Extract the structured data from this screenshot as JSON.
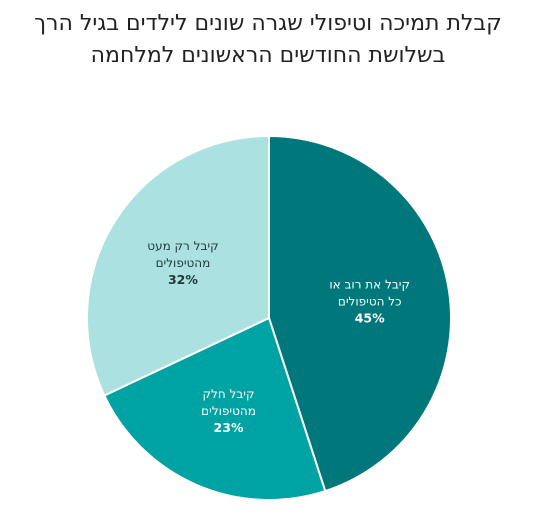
{
  "chart_data": {
    "type": "pie",
    "title_lines": [
      "קבלת תמיכה וטיפולי שגרה שונים לילדים בגיל הרך",
      "בשלושת החודשים הראשונים למלחמה"
    ],
    "slices": [
      {
        "label_lines": [
          "קיבל את רוב או",
          "כל הטיפולים"
        ],
        "value": 45,
        "value_label": "45%",
        "color": "#00777b",
        "text_color": "#ffffff"
      },
      {
        "label_lines": [
          "קיבל חלק",
          "מהטיפולים"
        ],
        "value": 23,
        "value_label": "23%",
        "color": "#00a3a3",
        "text_color": "#ffffff"
      },
      {
        "label_lines": [
          "קיבל רק מעט",
          "מהטיפולים"
        ],
        "value": 32,
        "value_label": "32%",
        "color": "#abe1e0",
        "text_color": "#1f3a3a"
      }
    ]
  }
}
